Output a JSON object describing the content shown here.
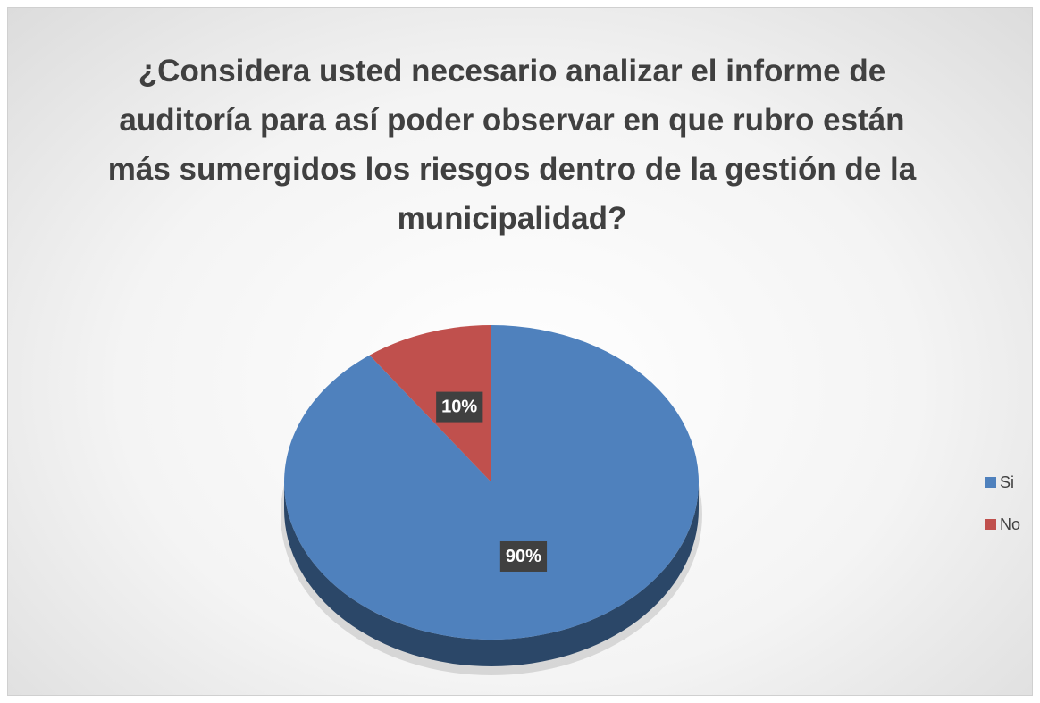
{
  "chart_data": {
    "type": "pie3d",
    "title": "¿Considera usted necesario analizar el informe de auditoría para así poder observar en que rubro están más sumergidos los riesgos dentro de la gestión de la municipalidad?",
    "categories": [
      "Si",
      "No"
    ],
    "values": [
      90,
      10
    ],
    "value_labels": [
      "90%",
      "10%"
    ],
    "colors": [
      "#4f81bd",
      "#c0504d"
    ],
    "legend": "right"
  }
}
